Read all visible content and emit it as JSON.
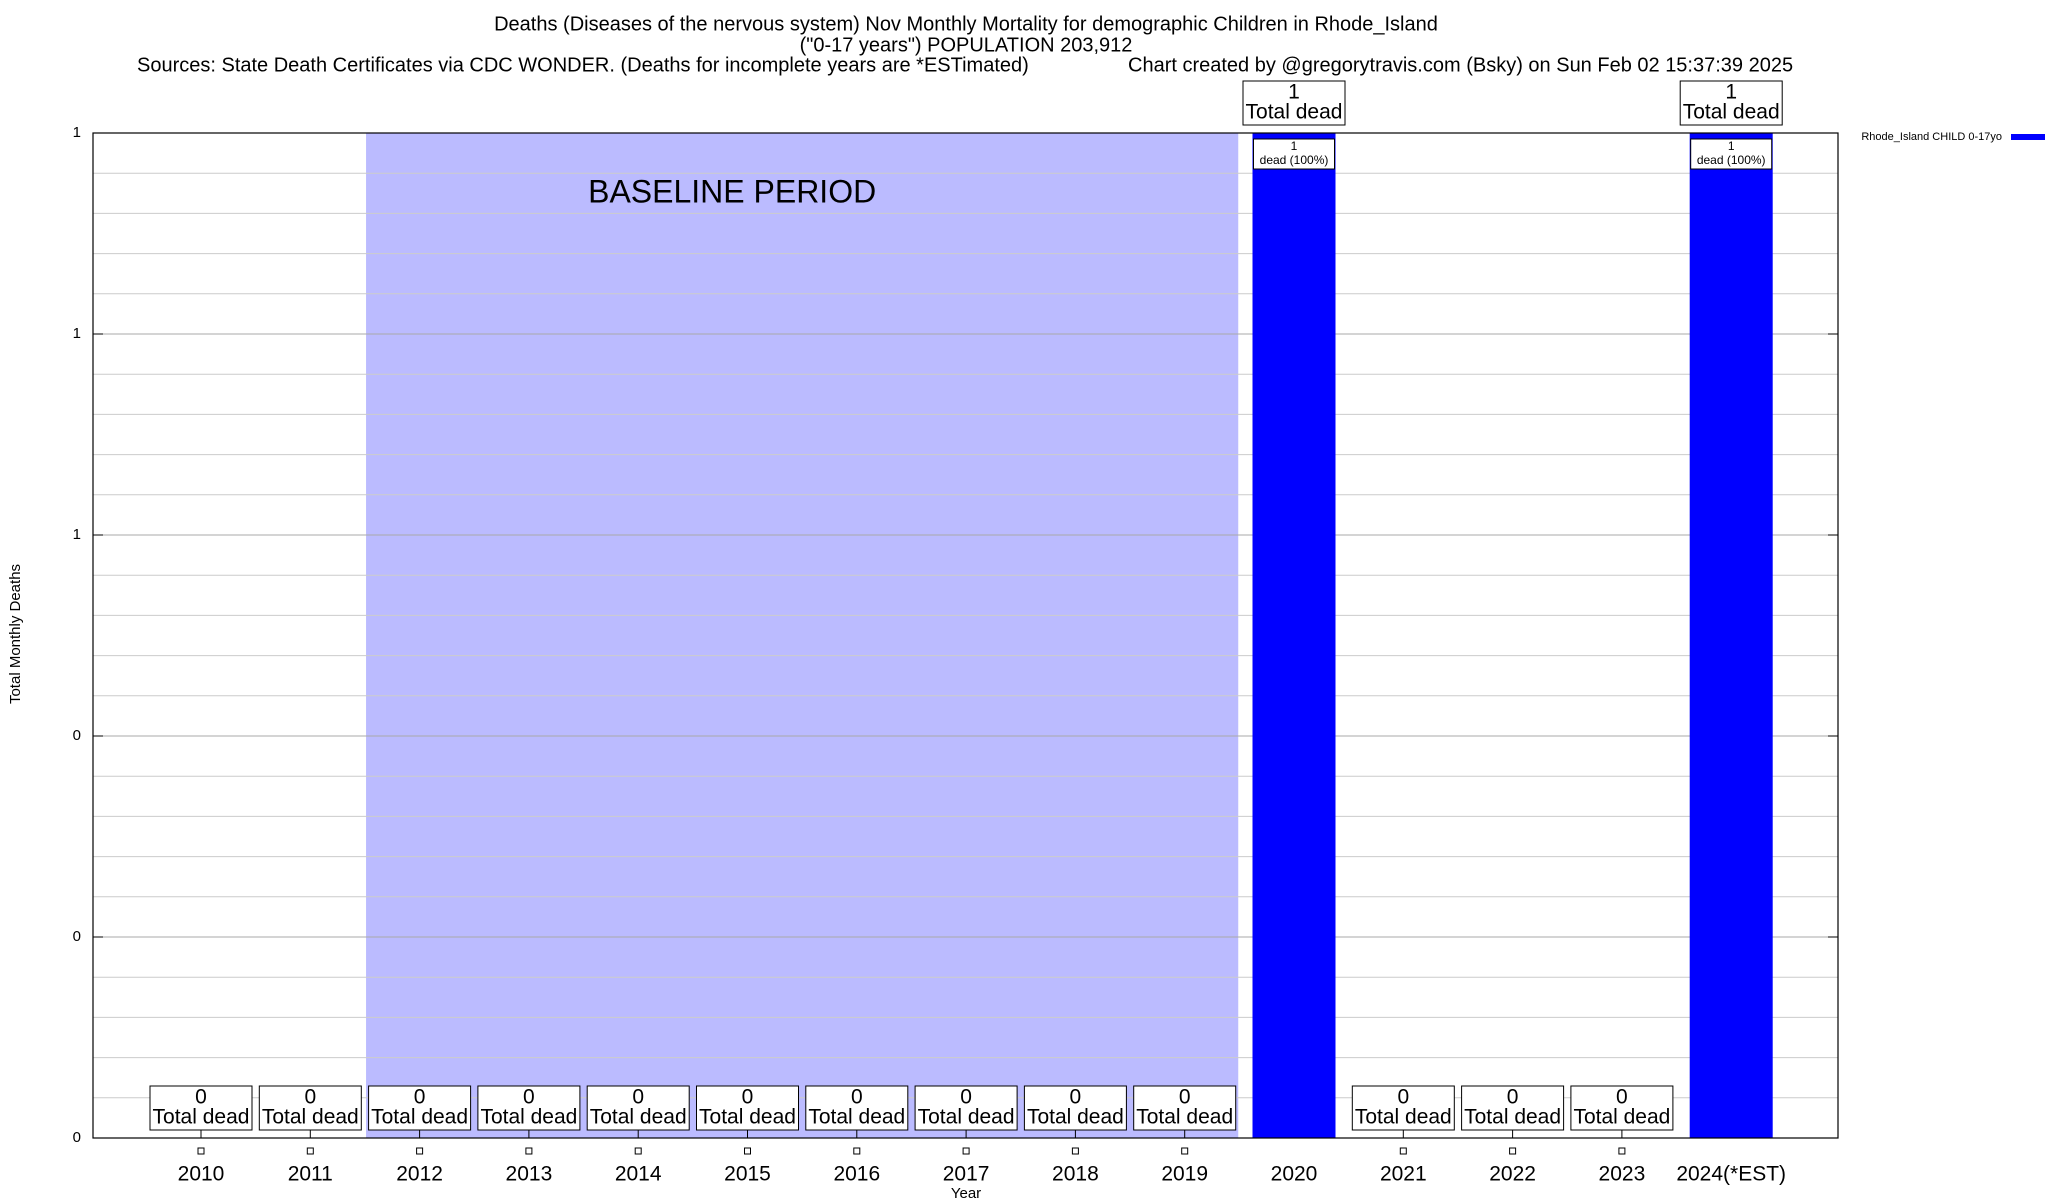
{
  "chart_data": {
    "type": "bar",
    "title": "Deaths (Diseases of the nervous system) Nov Monthly Mortality for demographic Children in Rhode_Island",
    "subtitle": "(\"0-17 years\") POPULATION 203,912",
    "source": "Sources: State Death Certificates via CDC WONDER. (Deaths for incomplete years are *ESTimated)",
    "credit": "Chart created by @gregorytravis.com (Bsky) on Sun Feb 02 15:37:39 2025",
    "x_label": "Year",
    "y_label": "Total Monthly Deaths",
    "categories": [
      "2010",
      "2011",
      "2012",
      "2013",
      "2014",
      "2015",
      "2016",
      "2017",
      "2018",
      "2019",
      "2020",
      "2021",
      "2022",
      "2023",
      "2024(*EST)"
    ],
    "series": [
      {
        "name": "Rhode_Island CHILD 0-17yo",
        "color": "#0000ff",
        "values": [
          0,
          0,
          0,
          0,
          0,
          0,
          0,
          0,
          0,
          0,
          1,
          0,
          0,
          0,
          1
        ],
        "segment_labels": [
          null,
          null,
          null,
          null,
          null,
          null,
          null,
          null,
          null,
          null,
          "dead (100%)",
          null,
          null,
          null,
          "dead (100%)"
        ]
      }
    ],
    "total_label": "Total dead",
    "baseline": {
      "label": "BASELINE PERIOD",
      "start": "2012",
      "end": "2019",
      "color": "#bbbbff"
    },
    "ylim": [
      0,
      1
    ],
    "yticks": [
      0,
      {
        "value": 0.2,
        "label": "0"
      },
      {
        "value": 0.4,
        "label": "0"
      },
      {
        "value": 0.6,
        "label": "1"
      },
      {
        "value": 0.8,
        "label": "1"
      },
      1
    ],
    "y_minor_divisions": 5,
    "grid": true,
    "legend": "top-right"
  }
}
